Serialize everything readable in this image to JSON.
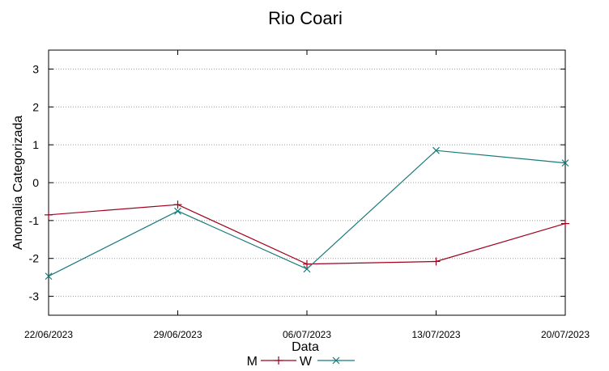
{
  "chart_data": {
    "type": "line",
    "title": "Rio Coari",
    "xlabel": "Data",
    "ylabel": "Anomalia Categorizada",
    "categories": [
      "22/06/2023",
      "29/06/2023",
      "06/07/2023",
      "13/07/2023",
      "20/07/2023"
    ],
    "ylim": [
      -3.5,
      3.5
    ],
    "yticks": [
      "3",
      "2",
      "1",
      "0",
      "-1",
      "-2",
      "-3"
    ],
    "grid": true,
    "legend": "bottom-center",
    "series": [
      {
        "name": "M",
        "color": "#a0001c",
        "marker": "plus",
        "values": [
          -0.85,
          -0.58,
          -2.15,
          -2.08,
          -1.08
        ]
      },
      {
        "name": "W",
        "color": "#1a7a7a",
        "marker": "x",
        "values": [
          -2.47,
          -0.75,
          -2.28,
          0.85,
          0.52
        ]
      }
    ]
  }
}
